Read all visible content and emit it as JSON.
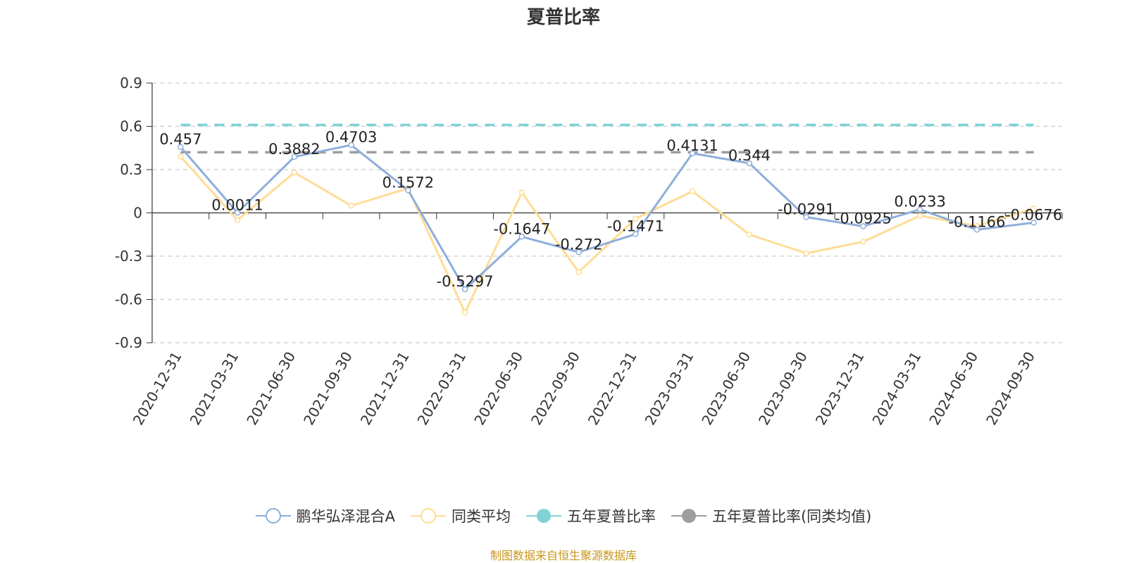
{
  "title": "夏普比率",
  "source_note": "制图数据来自恒生聚源数据库",
  "legend": [
    {
      "label": "鹏华弘泽混合A",
      "color": "#8eaedb",
      "style": "line-hollow-circle"
    },
    {
      "label": "同类平均",
      "color": "#ffdc96",
      "style": "line-hollow-circle"
    },
    {
      "label": "五年夏普比率",
      "color": "#7fd3d6",
      "style": "line-filled-circle"
    },
    {
      "label": "五年夏普比率(同类均值)",
      "color": "#9e9e9e",
      "style": "line-filled-circle"
    }
  ],
  "chart_data": {
    "type": "line",
    "title": "夏普比率",
    "categories": [
      "2020-12-31",
      "2021-03-31",
      "2021-06-30",
      "2021-09-30",
      "2021-12-31",
      "2022-03-31",
      "2022-06-30",
      "2022-09-30",
      "2022-12-31",
      "2023-03-31",
      "2023-06-30",
      "2023-09-30",
      "2023-12-31",
      "2024-03-31",
      "2024-06-30",
      "2024-09-30"
    ],
    "ylim": [
      -0.9,
      0.9
    ],
    "yticks": [
      0.9,
      0.6,
      0.3,
      0,
      -0.3,
      -0.6,
      -0.9
    ],
    "ytick_labels": [
      "0.9",
      "0.6",
      "0.3",
      "0",
      "-0.3",
      "-0.6",
      "-0.9"
    ],
    "grid": true,
    "legend_position": "bottom",
    "series": [
      {
        "name": "鹏华弘泽混合A",
        "color": "#8eaedb",
        "values": [
          0.457,
          0.0011,
          0.3882,
          0.4703,
          0.1572,
          -0.5297,
          -0.1647,
          -0.272,
          -0.1471,
          0.4131,
          0.344,
          -0.0291,
          -0.0925,
          0.0233,
          -0.1166,
          -0.0676
        ],
        "data_labels": [
          "0.457",
          "0.0011",
          "0.3882",
          "0.4703",
          "0.1572",
          "-0.5297",
          "-0.1647",
          "-0.272",
          "-0.1471",
          "0.4131",
          "0.344",
          "-0.0291",
          "-0.0925",
          "0.0233",
          "-0.1166",
          "-0.0676"
        ]
      },
      {
        "name": "同类平均",
        "color": "#ffdc96",
        "values": [
          0.39,
          -0.05,
          0.28,
          0.05,
          0.17,
          -0.69,
          0.14,
          -0.41,
          -0.04,
          0.15,
          -0.15,
          -0.28,
          -0.2,
          -0.02,
          -0.09,
          0.03
        ]
      }
    ],
    "reference_lines": [
      {
        "name": "五年夏普比率",
        "value": 0.61,
        "color": "#7fd3d6"
      },
      {
        "name": "五年夏普比率(同类均值)",
        "value": 0.42,
        "color": "#9e9e9e"
      }
    ]
  }
}
